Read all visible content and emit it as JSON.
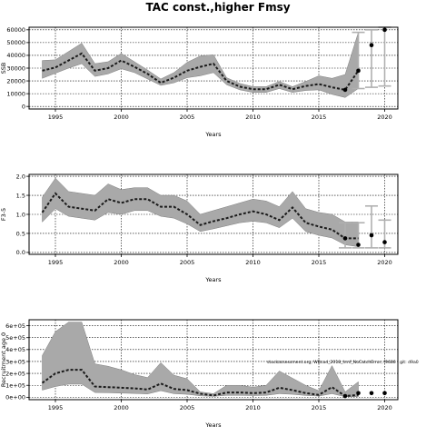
{
  "title": "TAC const.,higher Fmsy",
  "chart_data": [
    {
      "type": "line",
      "xlabel": "Years",
      "ylabel": "SSB",
      "xlim": [
        1993,
        2021
      ],
      "ylim": [
        -2000,
        62000
      ],
      "xticks": [
        1995,
        2000,
        2005,
        2010,
        2015,
        2020
      ],
      "xtick_labels": [
        "1995",
        "2000",
        "2005",
        "2010",
        "2015",
        "2020"
      ],
      "yticks": [
        0,
        10000,
        20000,
        30000,
        40000,
        50000,
        60000
      ],
      "ytick_labels": [
        "0",
        "10000",
        "20000",
        "30000",
        "40000",
        "50000",
        "60000"
      ],
      "grid": true,
      "series": [
        {
          "role": "median",
          "x": [
            1994,
            1995,
            1996,
            1997,
            1998,
            1999,
            2000,
            2001,
            2002,
            2003,
            2004,
            2005,
            2006,
            2007,
            2008,
            2009,
            2010,
            2011,
            2012,
            2013,
            2014,
            2015,
            2016,
            2017,
            2018
          ],
          "y": [
            28000,
            30500,
            36000,
            41500,
            28000,
            30000,
            36000,
            31000,
            25500,
            18500,
            22500,
            28000,
            31000,
            33500,
            20000,
            15500,
            13500,
            13500,
            17000,
            13500,
            16000,
            17500,
            15000,
            13000,
            28000
          ],
          "upper": [
            36000,
            36500,
            43000,
            49500,
            33500,
            35000,
            41500,
            35000,
            28500,
            21500,
            26500,
            34500,
            39500,
            40500,
            22500,
            18000,
            15500,
            15500,
            19500,
            15500,
            19500,
            24000,
            22000,
            25000,
            58000
          ],
          "lower": [
            22000,
            26000,
            30000,
            33500,
            23500,
            25500,
            29500,
            26500,
            21500,
            16500,
            18500,
            22500,
            24000,
            26500,
            17000,
            13000,
            11000,
            11000,
            14000,
            11000,
            12500,
            13000,
            9500,
            7000,
            14000
          ]
        },
        {
          "role": "points",
          "x": [
            2017,
            2018,
            2019,
            2020
          ],
          "y": [
            13000,
            28000,
            48000,
            60000
          ],
          "err_hi": [
            null,
            58000,
            60000,
            62000
          ],
          "err_lo": [
            null,
            14000,
            15000,
            16000
          ]
        }
      ]
    },
    {
      "type": "line",
      "xlabel": "Years",
      "ylabel": "F3-5",
      "xlim": [
        1993,
        2021
      ],
      "ylim": [
        -0.05,
        2.05
      ],
      "xticks": [
        1995,
        2000,
        2005,
        2010,
        2015,
        2020
      ],
      "xtick_labels": [
        "1995",
        "2000",
        "2005",
        "2010",
        "2015",
        "2020"
      ],
      "yticks": [
        0.0,
        0.5,
        1.0,
        1.5,
        2.0
      ],
      "ytick_labels": [
        "0.0",
        "0.5",
        "1.0",
        "1.5",
        "2.0"
      ],
      "grid": true,
      "series": [
        {
          "role": "median",
          "x": [
            1994,
            1995,
            1996,
            1997,
            1998,
            1999,
            2000,
            2001,
            2002,
            2003,
            2004,
            2005,
            2006,
            2007,
            2008,
            2009,
            2010,
            2011,
            2012,
            2013,
            2014,
            2015,
            2016,
            2017,
            2018
          ],
          "y": [
            1.05,
            1.55,
            1.2,
            1.15,
            1.1,
            1.4,
            1.3,
            1.4,
            1.4,
            1.2,
            1.2,
            1.0,
            0.72,
            0.82,
            0.9,
            1.0,
            1.08,
            1.0,
            0.85,
            1.18,
            0.78,
            0.68,
            0.6,
            0.37,
            0.37
          ],
          "upper": [
            1.45,
            1.95,
            1.6,
            1.55,
            1.5,
            1.8,
            1.65,
            1.7,
            1.7,
            1.5,
            1.5,
            1.35,
            1.0,
            1.1,
            1.2,
            1.3,
            1.4,
            1.35,
            1.2,
            1.6,
            1.15,
            1.05,
            1.0,
            0.8,
            0.8
          ],
          "lower": [
            0.8,
            1.15,
            0.95,
            0.9,
            0.85,
            1.05,
            1.0,
            1.1,
            1.1,
            0.95,
            0.9,
            0.75,
            0.55,
            0.62,
            0.7,
            0.78,
            0.82,
            0.78,
            0.65,
            0.9,
            0.55,
            0.45,
            0.38,
            0.2,
            0.15
          ]
        },
        {
          "role": "points",
          "x": [
            2017,
            2018,
            2019,
            2020
          ],
          "y": [
            0.37,
            0.2,
            0.45,
            0.27
          ],
          "err_hi": [
            0.78,
            0.78,
            1.22,
            0.85
          ],
          "err_lo": [
            0.12,
            0.12,
            0.12,
            0.12
          ]
        }
      ]
    },
    {
      "type": "line",
      "xlabel": "Years",
      "ylabel": "Recruitment age 0",
      "xlim": [
        1993,
        2021
      ],
      "ylim": [
        -20000,
        650000
      ],
      "xticks": [
        1995,
        2000,
        2005,
        2010,
        2015,
        2020
      ],
      "xtick_labels": [
        "1995",
        "2000",
        "2005",
        "2010",
        "2015",
        "2020"
      ],
      "yticks": [
        0,
        100000,
        200000,
        300000,
        400000,
        500000,
        600000
      ],
      "ytick_labels": [
        "0e+00",
        "1e+05",
        "2e+05",
        "3e+05",
        "4e+05",
        "5e+05",
        "6e+05"
      ],
      "grid": true,
      "annotation": "stockassessment.org, WBcod_2018_hmf_NoCatchError, f9686 , git: d9a0",
      "series": [
        {
          "role": "median",
          "x": [
            1994,
            1995,
            1996,
            1997,
            1998,
            1999,
            2000,
            2001,
            2002,
            2003,
            2004,
            2005,
            2006,
            2007,
            2008,
            2009,
            2010,
            2011,
            2012,
            2013,
            2014,
            2015,
            2016,
            2017,
            2018
          ],
          "y": [
            120000,
            200000,
            230000,
            230000,
            90000,
            85000,
            80000,
            75000,
            65000,
            115000,
            70000,
            60000,
            30000,
            15000,
            40000,
            40000,
            35000,
            40000,
            80000,
            60000,
            35000,
            20000,
            85000,
            10000,
            20000
          ],
          "upper": [
            350000,
            550000,
            630000,
            630000,
            280000,
            260000,
            230000,
            190000,
            165000,
            290000,
            185000,
            155000,
            45000,
            30000,
            100000,
            100000,
            85000,
            100000,
            220000,
            160000,
            100000,
            55000,
            265000,
            45000,
            130000
          ],
          "lower": [
            60000,
            90000,
            110000,
            110000,
            40000,
            38000,
            35000,
            32000,
            28000,
            55000,
            30000,
            25000,
            12000,
            8000,
            16000,
            16000,
            14000,
            16000,
            30000,
            25000,
            15000,
            10000,
            30000,
            5000,
            5000
          ]
        },
        {
          "role": "points",
          "x": [
            2017,
            2018,
            2019,
            2020
          ],
          "y": [
            10000,
            35000,
            35000,
            35000
          ]
        }
      ]
    }
  ]
}
